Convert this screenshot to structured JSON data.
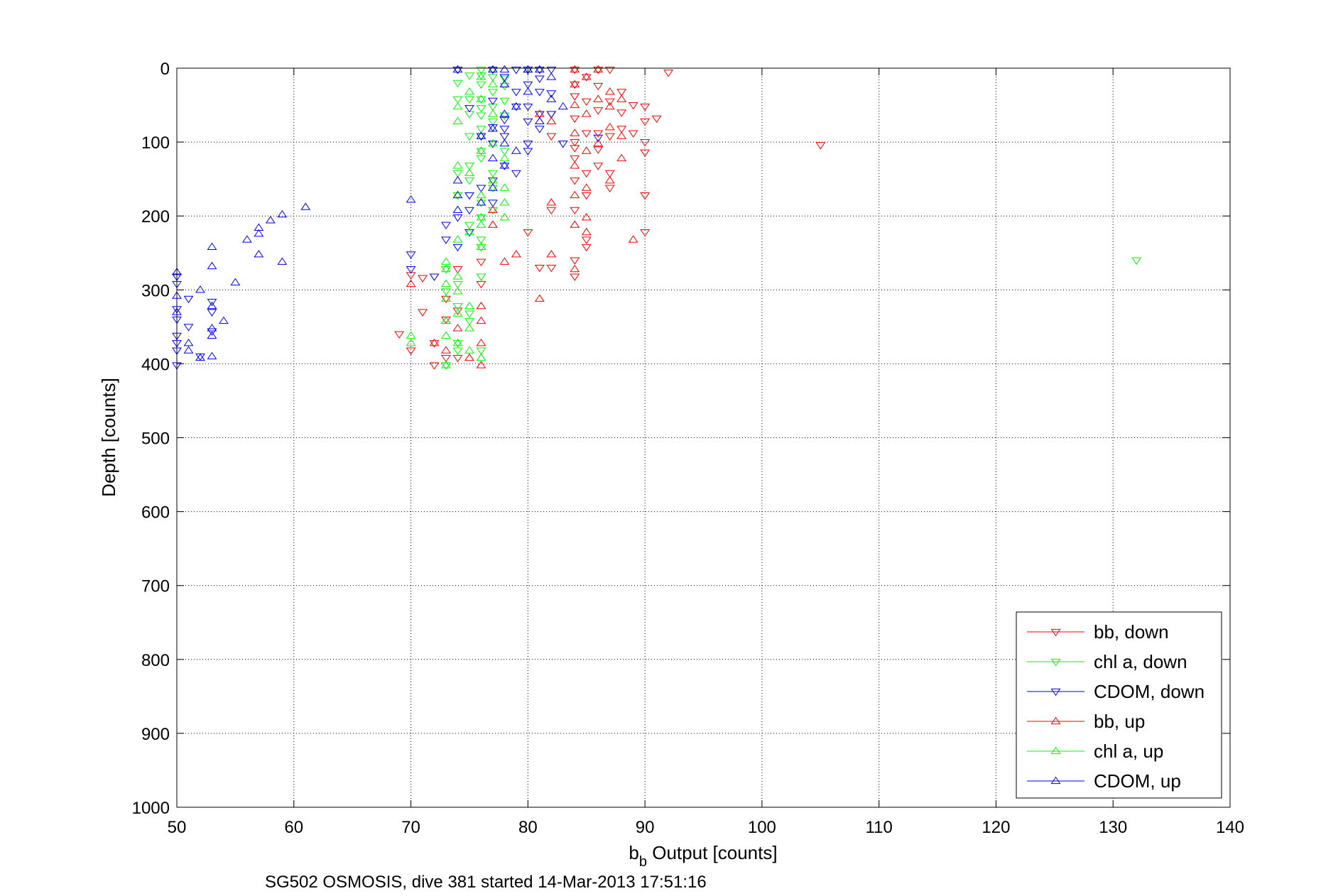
{
  "caption": "SG502 OSMOSIS, dive 381 started 14-Mar-2013 17:51:16",
  "chart_data": {
    "type": "scatter",
    "xlabel_main": "b",
    "xlabel_sub": "b",
    "xlabel_rest": " Output [counts]",
    "ylabel": "Depth [counts]",
    "xlim": [
      50,
      140
    ],
    "ylim": [
      0,
      1000
    ],
    "y_reversed": true,
    "xticks": [
      50,
      60,
      70,
      80,
      90,
      100,
      110,
      120,
      130,
      140
    ],
    "yticks": [
      0,
      100,
      200,
      300,
      400,
      500,
      600,
      700,
      800,
      900,
      1000
    ],
    "grid": true,
    "legend_position": "bottom-right",
    "series": [
      {
        "name": "bb, down",
        "color": "#ff0000",
        "marker": "triangle-down",
        "points": [
          [
            84,
            2
          ],
          [
            86,
            2
          ],
          [
            87,
            2
          ],
          [
            85,
            12
          ],
          [
            92,
            6
          ],
          [
            84,
            22
          ],
          [
            86,
            24
          ],
          [
            88,
            32
          ],
          [
            84,
            38
          ],
          [
            85,
            45
          ],
          [
            87,
            45
          ],
          [
            89,
            50
          ],
          [
            90,
            52
          ],
          [
            86,
            57
          ],
          [
            88,
            60
          ],
          [
            82,
            62
          ],
          [
            84,
            68
          ],
          [
            91,
            68
          ],
          [
            90,
            72
          ],
          [
            88,
            82
          ],
          [
            85,
            88
          ],
          [
            86,
            88
          ],
          [
            89,
            88
          ],
          [
            82,
            92
          ],
          [
            87,
            92
          ],
          [
            84,
            100
          ],
          [
            90,
            100
          ],
          [
            84,
            108
          ],
          [
            86,
            110
          ],
          [
            90,
            114
          ],
          [
            105,
            104
          ],
          [
            84,
            122
          ],
          [
            86,
            132
          ],
          [
            85,
            142
          ],
          [
            87,
            142
          ],
          [
            84,
            152
          ],
          [
            87,
            162
          ],
          [
            85,
            172
          ],
          [
            90,
            172
          ],
          [
            82,
            192
          ],
          [
            84,
            192
          ],
          [
            80,
            222
          ],
          [
            90,
            222
          ],
          [
            85,
            232
          ],
          [
            85,
            242
          ],
          [
            84,
            260
          ],
          [
            82,
            270
          ],
          [
            81,
            270
          ],
          [
            84,
            282
          ],
          [
            74,
            272
          ],
          [
            76,
            262
          ],
          [
            70,
            280
          ],
          [
            71,
            284
          ],
          [
            76,
            292
          ],
          [
            73,
            312
          ],
          [
            74,
            328
          ],
          [
            71,
            330
          ],
          [
            73,
            340
          ],
          [
            69,
            360
          ],
          [
            72,
            372
          ],
          [
            70,
            382
          ],
          [
            73,
            392
          ],
          [
            74,
            392
          ],
          [
            72,
            402
          ]
        ]
      },
      {
        "name": "chl a, down",
        "color": "#00ff00",
        "marker": "triangle-down",
        "points": [
          [
            74,
            2
          ],
          [
            76,
            2
          ],
          [
            77,
            2
          ],
          [
            79,
            2
          ],
          [
            80,
            2
          ],
          [
            75,
            10
          ],
          [
            76,
            10
          ],
          [
            77,
            12
          ],
          [
            78,
            14
          ],
          [
            74,
            20
          ],
          [
            76,
            22
          ],
          [
            78,
            24
          ],
          [
            77,
            32
          ],
          [
            74,
            42
          ],
          [
            75,
            42
          ],
          [
            76,
            42
          ],
          [
            78,
            44
          ],
          [
            77,
            52
          ],
          [
            76,
            54
          ],
          [
            75,
            62
          ],
          [
            76,
            64
          ],
          [
            78,
            64
          ],
          [
            77,
            72
          ],
          [
            76,
            82
          ],
          [
            75,
            92
          ],
          [
            76,
            92
          ],
          [
            77,
            102
          ],
          [
            76,
            112
          ],
          [
            78,
            112
          ],
          [
            76,
            122
          ],
          [
            75,
            132
          ],
          [
            74,
            142
          ],
          [
            77,
            142
          ],
          [
            75,
            152
          ],
          [
            77,
            162
          ],
          [
            74,
            172
          ],
          [
            76,
            182
          ],
          [
            77,
            192
          ],
          [
            76,
            202
          ],
          [
            75,
            212
          ],
          [
            75,
            222
          ],
          [
            76,
            232
          ],
          [
            76,
            242
          ],
          [
            73,
            272
          ],
          [
            76,
            282
          ],
          [
            74,
            292
          ],
          [
            73,
            302
          ],
          [
            74,
            322
          ],
          [
            75,
            332
          ],
          [
            75,
            342
          ],
          [
            74,
            372
          ],
          [
            74,
            382
          ],
          [
            76,
            382
          ],
          [
            73,
            402
          ],
          [
            132,
            260
          ]
        ]
      },
      {
        "name": "CDOM, down",
        "color": "#0000ff",
        "marker": "triangle-down",
        "points": [
          [
            74,
            2
          ],
          [
            77,
            2
          ],
          [
            79,
            2
          ],
          [
            80,
            2
          ],
          [
            81,
            2
          ],
          [
            82,
            2
          ],
          [
            78,
            12
          ],
          [
            81,
            14
          ],
          [
            80,
            22
          ],
          [
            79,
            32
          ],
          [
            81,
            32
          ],
          [
            82,
            34
          ],
          [
            77,
            44
          ],
          [
            79,
            52
          ],
          [
            80,
            52
          ],
          [
            75,
            54
          ],
          [
            81,
            62
          ],
          [
            82,
            62
          ],
          [
            78,
            70
          ],
          [
            80,
            72
          ],
          [
            77,
            80
          ],
          [
            78,
            82
          ],
          [
            81,
            82
          ],
          [
            76,
            92
          ],
          [
            78,
            92
          ],
          [
            86,
            94
          ],
          [
            77,
            102
          ],
          [
            80,
            102
          ],
          [
            83,
            102
          ],
          [
            80,
            112
          ],
          [
            78,
            132
          ],
          [
            79,
            142
          ],
          [
            77,
            152
          ],
          [
            76,
            162
          ],
          [
            75,
            172
          ],
          [
            77,
            182
          ],
          [
            75,
            192
          ],
          [
            74,
            202
          ],
          [
            73,
            212
          ],
          [
            75,
            222
          ],
          [
            73,
            232
          ],
          [
            74,
            242
          ],
          [
            70,
            252
          ],
          [
            70,
            272
          ],
          [
            72,
            282
          ],
          [
            50,
            282
          ],
          [
            50,
            292
          ],
          [
            51,
            312
          ],
          [
            53,
            316
          ],
          [
            50,
            326
          ],
          [
            53,
            330
          ],
          [
            50,
            340
          ],
          [
            51,
            350
          ],
          [
            53,
            356
          ],
          [
            50,
            362
          ],
          [
            50,
            372
          ],
          [
            50,
            382
          ],
          [
            52,
            390
          ],
          [
            50,
            402
          ]
        ]
      },
      {
        "name": "bb, up",
        "color": "#ff0000",
        "marker": "triangle-up",
        "points": [
          [
            84,
            2
          ],
          [
            86,
            2
          ],
          [
            85,
            12
          ],
          [
            84,
            22
          ],
          [
            87,
            32
          ],
          [
            86,
            42
          ],
          [
            88,
            42
          ],
          [
            84,
            50
          ],
          [
            87,
            52
          ],
          [
            85,
            62
          ],
          [
            81,
            62
          ],
          [
            82,
            72
          ],
          [
            87,
            80
          ],
          [
            84,
            88
          ],
          [
            88,
            92
          ],
          [
            86,
            102
          ],
          [
            85,
            112
          ],
          [
            88,
            122
          ],
          [
            84,
            132
          ],
          [
            87,
            152
          ],
          [
            85,
            162
          ],
          [
            84,
            172
          ],
          [
            82,
            182
          ],
          [
            85,
            202
          ],
          [
            84,
            212
          ],
          [
            85,
            222
          ],
          [
            77,
            192
          ],
          [
            77,
            212
          ],
          [
            78,
            262
          ],
          [
            79,
            252
          ],
          [
            82,
            252
          ],
          [
            89,
            232
          ],
          [
            84,
            272
          ],
          [
            81,
            312
          ],
          [
            70,
            292
          ],
          [
            72,
            372
          ],
          [
            73,
            342
          ],
          [
            76,
            322
          ],
          [
            76,
            342
          ],
          [
            74,
            352
          ],
          [
            76,
            372
          ],
          [
            73,
            382
          ],
          [
            75,
            392
          ],
          [
            76,
            402
          ]
        ]
      },
      {
        "name": "chl a, up",
        "color": "#00ff00",
        "marker": "triangle-up",
        "points": [
          [
            80,
            2
          ],
          [
            76,
            12
          ],
          [
            77,
            22
          ],
          [
            75,
            32
          ],
          [
            76,
            42
          ],
          [
            74,
            52
          ],
          [
            77,
            62
          ],
          [
            74,
            72
          ],
          [
            77,
            82
          ],
          [
            76,
            92
          ],
          [
            77,
            102
          ],
          [
            76,
            112
          ],
          [
            78,
            122
          ],
          [
            74,
            132
          ],
          [
            75,
            142
          ],
          [
            77,
            152
          ],
          [
            78,
            162
          ],
          [
            76,
            172
          ],
          [
            78,
            182
          ],
          [
            74,
            192
          ],
          [
            76,
            202
          ],
          [
            78,
            202
          ],
          [
            76,
            212
          ],
          [
            75,
            222
          ],
          [
            74,
            232
          ],
          [
            76,
            242
          ],
          [
            73,
            262
          ],
          [
            73,
            272
          ],
          [
            74,
            282
          ],
          [
            73,
            292
          ],
          [
            74,
            302
          ],
          [
            73,
            312
          ],
          [
            75,
            322
          ],
          [
            74,
            332
          ],
          [
            73,
            342
          ],
          [
            75,
            352
          ],
          [
            73,
            362
          ],
          [
            70,
            362
          ],
          [
            70,
            372
          ],
          [
            74,
            372
          ],
          [
            75,
            382
          ],
          [
            76,
            392
          ],
          [
            73,
            402
          ]
        ]
      },
      {
        "name": "CDOM, up",
        "color": "#0000ff",
        "marker": "triangle-up",
        "points": [
          [
            74,
            2
          ],
          [
            77,
            2
          ],
          [
            78,
            2
          ],
          [
            80,
            2
          ],
          [
            81,
            2
          ],
          [
            82,
            12
          ],
          [
            78,
            22
          ],
          [
            80,
            32
          ],
          [
            82,
            42
          ],
          [
            79,
            52
          ],
          [
            83,
            52
          ],
          [
            78,
            62
          ],
          [
            81,
            72
          ],
          [
            77,
            82
          ],
          [
            76,
            92
          ],
          [
            78,
            102
          ],
          [
            79,
            112
          ],
          [
            77,
            122
          ],
          [
            78,
            132
          ],
          [
            74,
            152
          ],
          [
            77,
            162
          ],
          [
            74,
            172
          ],
          [
            76,
            182
          ],
          [
            74,
            192
          ],
          [
            70,
            178
          ],
          [
            61,
            188
          ],
          [
            59,
            198
          ],
          [
            58,
            206
          ],
          [
            57,
            216
          ],
          [
            57,
            224
          ],
          [
            56,
            232
          ],
          [
            53,
            242
          ],
          [
            57,
            252
          ],
          [
            59,
            262
          ],
          [
            53,
            268
          ],
          [
            50,
            276
          ],
          [
            55,
            290
          ],
          [
            52,
            300
          ],
          [
            50,
            308
          ],
          [
            53,
            322
          ],
          [
            50,
            330
          ],
          [
            54,
            342
          ],
          [
            53,
            352
          ],
          [
            53,
            362
          ],
          [
            51,
            372
          ],
          [
            51,
            382
          ],
          [
            53,
            390
          ],
          [
            52,
            392
          ]
        ]
      }
    ]
  }
}
